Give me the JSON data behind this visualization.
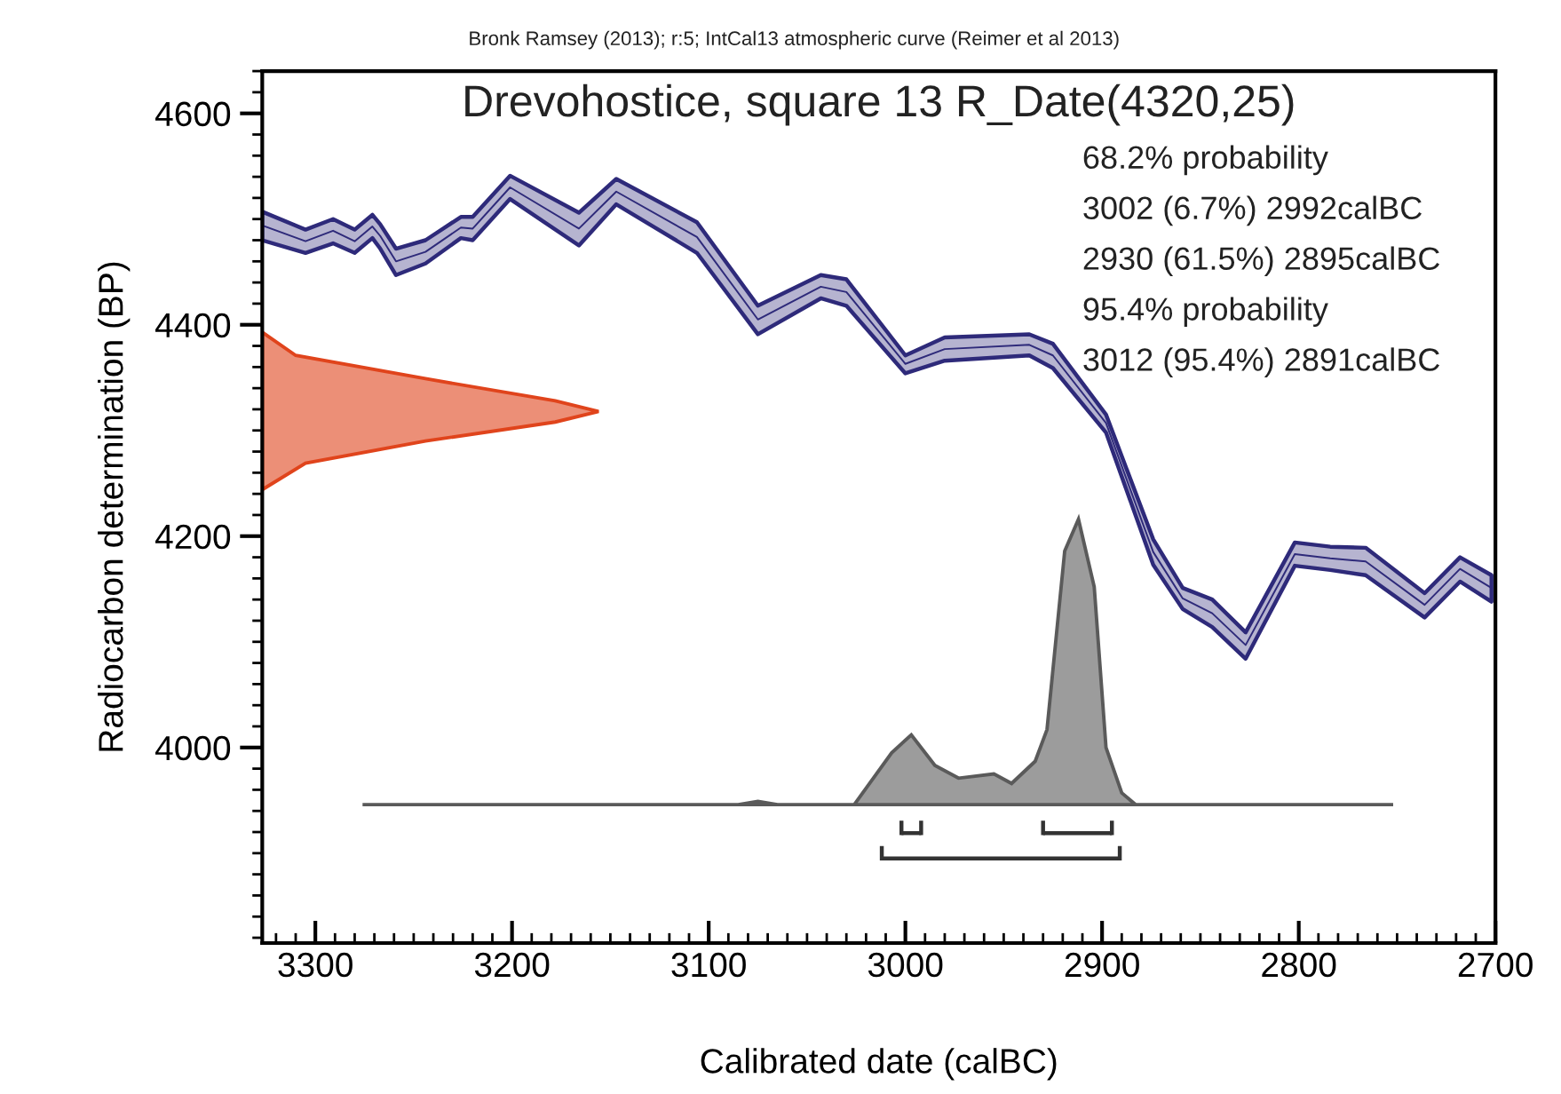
{
  "chart_data": {
    "type": "line",
    "title": "Drevohostice, square 13 R_Date(4320,25)",
    "subtitle": "Bronk Ramsey (2013); r:5; IntCal13 atmospheric curve (Reimer et al 2013)",
    "xlabel": "Calibrated date (calBC)",
    "ylabel": "Radiocarbon determination (BP)",
    "annotations": [
      "68.2% probability",
      "3002 (6.7%) 2992calBC",
      "2930 (61.5%) 2895calBC",
      "95.4% probability",
      "3012 (95.4%) 2891calBC"
    ],
    "xlim": [
      3327,
      2700
    ],
    "xticks": [
      3300,
      3200,
      3100,
      3000,
      2900,
      2800,
      2700
    ],
    "ylim": [
      3815,
      4640
    ],
    "yticks": [
      4000,
      4200,
      4400,
      4600
    ],
    "grid": false,
    "legend": false,
    "series": [
      {
        "color": "#2e2a7a",
        "x": [
          3327,
          3305,
          3291,
          3280,
          3271,
          3267,
          3259,
          3244,
          3226,
          3220,
          3201,
          3166,
          3147,
          3106,
          3075,
          3043,
          3030,
          3000,
          2980,
          2937,
          2925,
          2898,
          2874,
          2859,
          2844,
          2827,
          2802,
          2784,
          2766,
          2736,
          2718,
          2702
        ],
        "values": [
          4494,
          4479,
          4489,
          4479,
          4493,
          4484,
          4460,
          4469,
          4492,
          4491,
          4530,
          4491,
          4526,
          4483,
          4405,
          4436,
          4431,
          4363,
          4377,
          4381,
          4371,
          4307,
          4185,
          4141,
          4127,
          4097,
          4183,
          4179,
          4176,
          4135,
          4169,
          4151
        ],
        "upper": [
          4507,
          4490,
          4500,
          4490,
          4504,
          4495,
          4472,
          4480,
          4502,
          4502,
          4541,
          4506,
          4538,
          4497,
          4418,
          4447,
          4443,
          4371,
          4388,
          4391,
          4382,
          4315,
          4197,
          4151,
          4140,
          4109,
          4194,
          4190,
          4189,
          4146,
          4180,
          4163
        ],
        "lower": [
          4480,
          4468,
          4477,
          4468,
          4482,
          4472,
          4447,
          4458,
          4482,
          4480,
          4519,
          4475,
          4514,
          4468,
          4391,
          4425,
          4418,
          4354,
          4366,
          4371,
          4359,
          4298,
          4173,
          4131,
          4114,
          4084,
          4172,
          4168,
          4163,
          4123,
          4157,
          4138
        ]
      },
      {
        "type": "area",
        "color": "#e0441c",
        "x": [
          3327,
          3310,
          3244,
          3178,
          3156,
          3178,
          3244,
          3305,
          3327
        ],
        "values": [
          4393,
          4371,
          4349,
          4328,
          4318,
          4308,
          4290,
          4269,
          4244
        ]
      },
      {
        "type": "area",
        "color": "#5a5a5a",
        "x": [
          3276,
          3085,
          3075,
          3065,
          3026,
          3007,
          2997,
          2985,
          2973,
          2955,
          2946,
          2934,
          2928,
          2919,
          2912,
          2904,
          2898,
          2890,
          2883,
          2752
        ],
        "values": [
          3946,
          3946,
          3949,
          3946,
          3946,
          3995,
          4012,
          3983,
          3971,
          3975,
          3966,
          3987,
          4017,
          4186,
          4216,
          4152,
          4000,
          3957,
          3946,
          3946
        ]
      },
      {
        "color": "#333333",
        "x": [
          3002,
          2992
        ],
        "values": [
          3919,
          3919
        ]
      },
      {
        "color": "#333333",
        "x": [
          2930,
          2895
        ],
        "values": [
          3919,
          3919
        ]
      },
      {
        "color": "#333333",
        "x": [
          3012,
          2891
        ],
        "values": [
          3895,
          3895
        ]
      }
    ]
  }
}
